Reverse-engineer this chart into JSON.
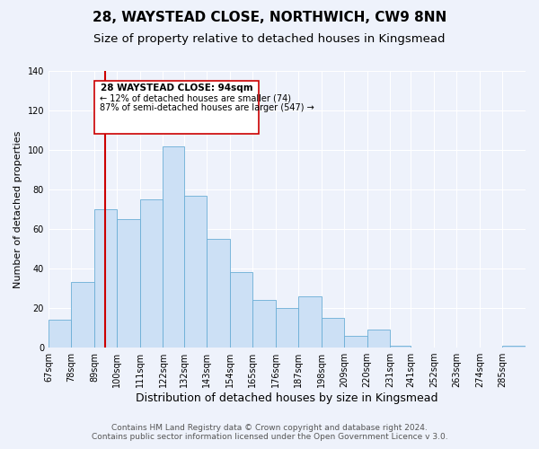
{
  "title": "28, WAYSTEAD CLOSE, NORTHWICH, CW9 8NN",
  "subtitle": "Size of property relative to detached houses in Kingsmead",
  "xlabel": "Distribution of detached houses by size in Kingsmead",
  "ylabel": "Number of detached properties",
  "bin_labels": [
    "67sqm",
    "78sqm",
    "89sqm",
    "100sqm",
    "111sqm",
    "122sqm",
    "132sqm",
    "143sqm",
    "154sqm",
    "165sqm",
    "176sqm",
    "187sqm",
    "198sqm",
    "209sqm",
    "220sqm",
    "231sqm",
    "241sqm",
    "252sqm",
    "263sqm",
    "274sqm",
    "285sqm"
  ],
  "bar_values": [
    14,
    33,
    70,
    65,
    75,
    102,
    77,
    55,
    38,
    24,
    20,
    26,
    15,
    6,
    9,
    1,
    0,
    0,
    0,
    0,
    1
  ],
  "bar_color": "#cce0f5",
  "bar_edge_color": "#6aaed6",
  "vline_x": 94,
  "vline_color": "#cc0000",
  "ylim": [
    0,
    140
  ],
  "yticks": [
    0,
    20,
    40,
    60,
    80,
    100,
    120,
    140
  ],
  "annotation_title": "28 WAYSTEAD CLOSE: 94sqm",
  "annotation_line1": "← 12% of detached houses are smaller (74)",
  "annotation_line2": "87% of semi-detached houses are larger (547) →",
  "annotation_box_color": "#ffffff",
  "annotation_box_edge": "#cc0000",
  "footer1": "Contains HM Land Registry data © Crown copyright and database right 2024.",
  "footer2": "Contains public sector information licensed under the Open Government Licence v 3.0.",
  "bg_color": "#eef2fb",
  "plot_bg_color": "#eef2fb",
  "grid_color": "#ffffff",
  "title_fontsize": 11,
  "subtitle_fontsize": 9.5,
  "xlabel_fontsize": 9,
  "ylabel_fontsize": 8,
  "tick_fontsize": 7,
  "footer_fontsize": 6.5,
  "bin_edges": [
    67,
    78,
    89,
    100,
    111,
    122,
    132,
    143,
    154,
    165,
    176,
    187,
    198,
    209,
    220,
    231,
    241,
    252,
    263,
    274,
    285,
    296
  ]
}
